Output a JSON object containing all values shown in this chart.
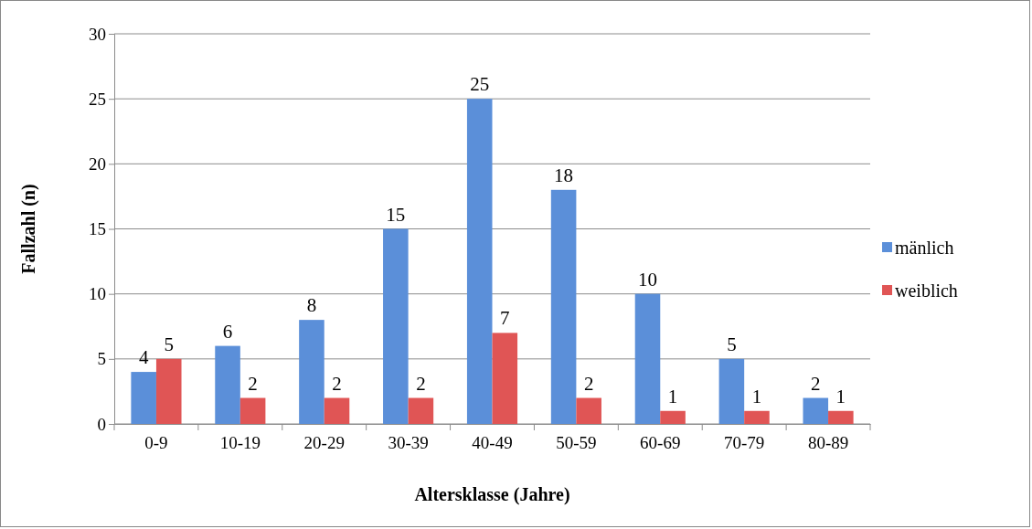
{
  "chart_data": {
    "type": "bar",
    "xlabel": "Altersklasse (Jahre)",
    "ylabel": "Fallzahl (n)",
    "categories": [
      "0-9",
      "10-19",
      "20-29",
      "30-39",
      "40-49",
      "50-59",
      "60-69",
      "70-79",
      "80-89"
    ],
    "series": [
      {
        "name": "mänlich",
        "color": "#5b8fd9",
        "values": [
          4,
          6,
          8,
          15,
          25,
          18,
          10,
          5,
          2
        ]
      },
      {
        "name": "weiblich",
        "color": "#e05555",
        "values": [
          5,
          2,
          2,
          2,
          7,
          2,
          1,
          1,
          1
        ]
      }
    ],
    "ylim": [
      0,
      30
    ],
    "yticks": [
      0,
      5,
      10,
      15,
      20,
      25,
      30
    ],
    "grid": "y",
    "legend": "right",
    "data_labels": true
  }
}
